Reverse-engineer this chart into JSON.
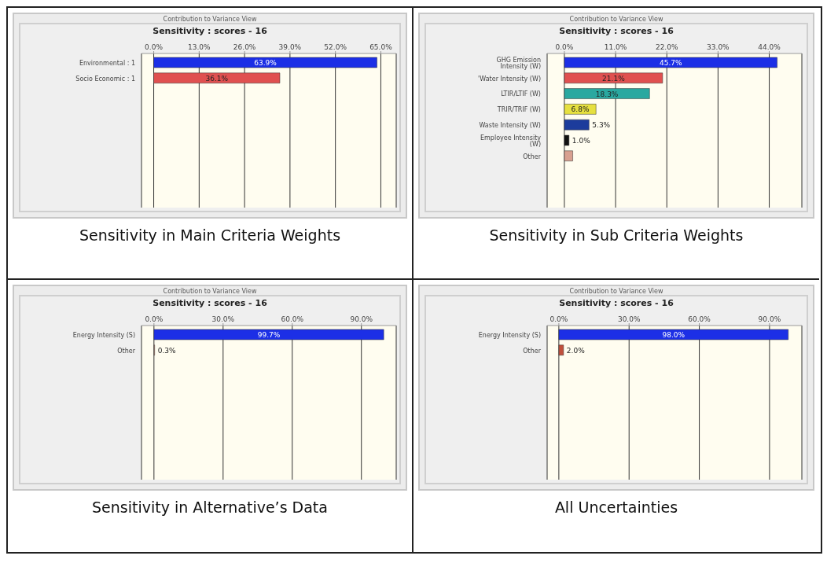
{
  "chart_data": [
    {
      "type": "bar",
      "orientation": "horizontal",
      "title": "Contribution to Variance View",
      "subtitle": "Sensitivity : scores - 16",
      "categories": [
        "Environmental : 1",
        "Socio Economic : 1"
      ],
      "values": [
        63.9,
        36.1
      ],
      "colors": [
        "#1c2fe6",
        "#e05050"
      ],
      "value_labels": [
        "63.9%",
        "36.1%"
      ],
      "xlim": [
        -3.5,
        69.4
      ],
      "xticks": [
        {
          "value": 0,
          "label": "0.0%"
        },
        {
          "value": 13,
          "label": "13.0%"
        },
        {
          "value": 26,
          "label": "26.0%"
        },
        {
          "value": 39,
          "label": "39.0%"
        },
        {
          "value": 52,
          "label": "52.0%"
        },
        {
          "value": 65,
          "label": "65.0%"
        }
      ],
      "grid": "x",
      "annotations": [
        "Sensitivity in Main Criteria Weights"
      ]
    },
    {
      "type": "bar",
      "orientation": "horizontal",
      "title": "Contribution to Variance View",
      "subtitle": "Sensitivity : scores - 16",
      "categories": [
        "GHG Emission Intensity (W)",
        "'Water Intensity (W)",
        "LTIR/LTIF (W)",
        "TRIR/TRIF (W)",
        "Waste Intensity (W)",
        "Employee Intensity (W)",
        "Other"
      ],
      "values": [
        45.7,
        21.1,
        18.3,
        6.8,
        5.3,
        1.0,
        1.8
      ],
      "colors": [
        "#1c2fe6",
        "#e05050",
        "#2aa8a0",
        "#e6e040",
        "#1c3c9c",
        "#111111",
        "#d8a090"
      ],
      "value_labels": [
        "45.7%",
        "21.1%",
        "18.3%",
        "6.8%",
        "5.3%",
        "1.0%",
        null
      ],
      "xlim": [
        -3.7,
        51
      ],
      "xticks": [
        {
          "value": 0,
          "label": "0.0%"
        },
        {
          "value": 11,
          "label": "11.0%"
        },
        {
          "value": 22,
          "label": "22.0%"
        },
        {
          "value": 33,
          "label": "33.0%"
        },
        {
          "value": 44,
          "label": "44.0%"
        }
      ],
      "grid": "x",
      "annotations": [
        "Sensitivity in Sub Criteria Weights"
      ]
    },
    {
      "type": "bar",
      "orientation": "horizontal",
      "title": "Contribution to Variance View",
      "subtitle": "Sensitivity : scores - 16",
      "categories": [
        "Energy Intensity (S)",
        "Other"
      ],
      "values": [
        99.7,
        0.3
      ],
      "colors": [
        "#1c2fe6",
        "#d8a090"
      ],
      "value_labels": [
        "99.7%",
        "0.3%"
      ],
      "xlim": [
        -5.4,
        105.1
      ],
      "xticks": [
        {
          "value": 0,
          "label": "0.0%"
        },
        {
          "value": 30,
          "label": "30.0%"
        },
        {
          "value": 60,
          "label": "60.0%"
        },
        {
          "value": 90,
          "label": "90.0%"
        }
      ],
      "grid": "x",
      "annotations": [
        "Sensitivity in Alternative’s Data"
      ]
    },
    {
      "type": "bar",
      "orientation": "horizontal",
      "title": "Contribution to Variance View",
      "subtitle": "Sensitivity : scores - 16",
      "categories": [
        "Energy Intensity (S)",
        "Other"
      ],
      "values": [
        98.0,
        2.0
      ],
      "colors": [
        "#1c2fe6",
        "#c0503c"
      ],
      "value_labels": [
        "98.0%",
        "2.0%"
      ],
      "xlim": [
        -5.0,
        103.8
      ],
      "xticks": [
        {
          "value": 0,
          "label": "0.0%"
        },
        {
          "value": 30,
          "label": "30.0%"
        },
        {
          "value": 60,
          "label": "60.0%"
        },
        {
          "value": 90,
          "label": "90.0%"
        }
      ],
      "grid": "x",
      "annotations": [
        "All Uncertainties"
      ]
    }
  ]
}
